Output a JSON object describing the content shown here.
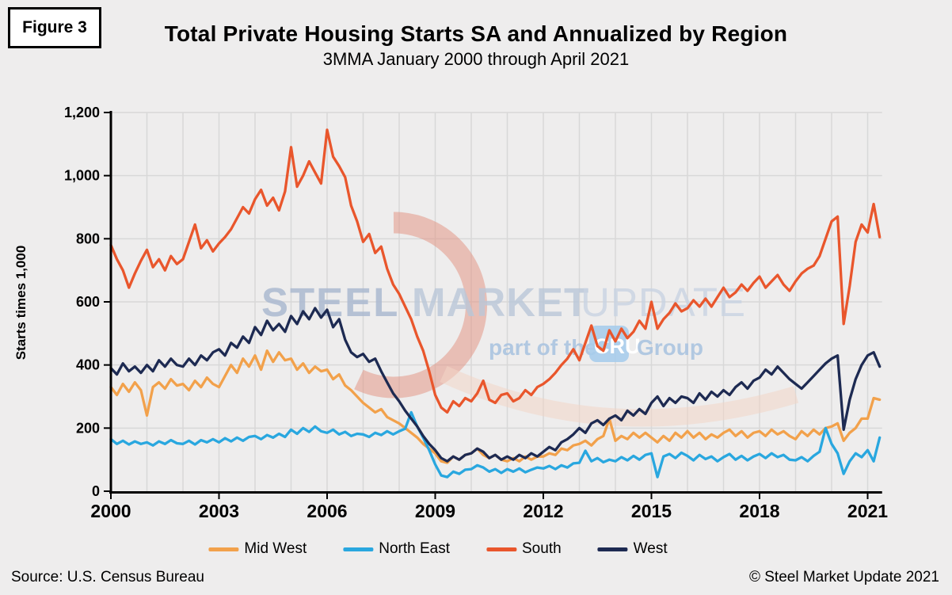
{
  "figure_label": "Figure 3",
  "header": {
    "title": "Total Private Housing Starts SA and Annualized by Region",
    "subtitle": "3MMA January 2000 through April 2021"
  },
  "watermark": {
    "steel": "STEEL",
    "market": "MARKET",
    "update": "UPDATE",
    "tagline_prefix": "part of the",
    "cru": "CRU",
    "tagline_suffix": "Group",
    "text_color": "#AFC3DC",
    "swoosh_color": "#E2907E"
  },
  "footer": {
    "source": "Source: U.S. Census Bureau",
    "copyright": "© Steel Market Update 2021"
  },
  "chart_data": {
    "type": "line",
    "title": "Total Private Housing Starts SA and Annualized by Region",
    "subtitle": "3MMA January 2000 through April 2021",
    "ylabel": "Starts times 1,000",
    "xlabel": "",
    "ylim": [
      0,
      1200
    ],
    "xlim": [
      2000,
      2021.4
    ],
    "grid": true,
    "legend_position": "bottom",
    "x_start_year": 2000,
    "x_step_months": 2,
    "x_end": "April 2021",
    "yticks": [
      {
        "v": 0,
        "label": "0"
      },
      {
        "v": 200,
        "label": "200"
      },
      {
        "v": 400,
        "label": "400"
      },
      {
        "v": 600,
        "label": "600"
      },
      {
        "v": 800,
        "label": "800"
      },
      {
        "v": 1000,
        "label": "1,000"
      },
      {
        "v": 1200,
        "label": "1,200"
      }
    ],
    "xticks": [
      {
        "year": 2000,
        "label": "2000"
      },
      {
        "year": 2003,
        "label": "2003"
      },
      {
        "year": 2006,
        "label": "2006"
      },
      {
        "year": 2009,
        "label": "2009"
      },
      {
        "year": 2012,
        "label": "2012"
      },
      {
        "year": 2015,
        "label": "2015"
      },
      {
        "year": 2018,
        "label": "2018"
      },
      {
        "year": 2021,
        "label": "2021"
      }
    ],
    "series": [
      {
        "name": "Mid West",
        "color": "#F2A14B",
        "values": [
          330,
          305,
          340,
          315,
          345,
          320,
          240,
          330,
          345,
          325,
          355,
          335,
          340,
          320,
          350,
          330,
          360,
          340,
          330,
          365,
          400,
          375,
          420,
          395,
          430,
          385,
          445,
          410,
          440,
          415,
          420,
          385,
          405,
          375,
          395,
          380,
          385,
          355,
          370,
          335,
          320,
          300,
          280,
          265,
          250,
          260,
          235,
          225,
          215,
          200,
          185,
          170,
          150,
          135,
          120,
          95,
          90,
          110,
          100,
          115,
          120,
          135,
          115,
          105,
          115,
          100,
          95,
          105,
          95,
          110,
          100,
          110,
          110,
          120,
          115,
          135,
          130,
          145,
          150,
          160,
          145,
          165,
          175,
          230,
          160,
          175,
          165,
          185,
          170,
          185,
          170,
          155,
          175,
          160,
          185,
          170,
          190,
          170,
          185,
          165,
          180,
          170,
          185,
          195,
          175,
          190,
          170,
          185,
          190,
          175,
          195,
          180,
          190,
          175,
          165,
          190,
          175,
          195,
          180,
          200,
          205,
          215,
          160,
          185,
          200,
          230,
          230,
          295,
          290
        ]
      },
      {
        "name": "North East",
        "color": "#29A7DF",
        "values": [
          165,
          150,
          160,
          148,
          158,
          150,
          155,
          145,
          158,
          150,
          162,
          152,
          150,
          160,
          148,
          162,
          155,
          165,
          155,
          168,
          158,
          170,
          160,
          172,
          175,
          165,
          178,
          170,
          182,
          172,
          195,
          182,
          200,
          188,
          205,
          190,
          185,
          195,
          180,
          188,
          175,
          182,
          180,
          172,
          185,
          178,
          190,
          180,
          190,
          198,
          250,
          205,
          170,
          130,
          85,
          50,
          45,
          62,
          55,
          68,
          70,
          82,
          75,
          62,
          70,
          58,
          70,
          62,
          72,
          60,
          68,
          75,
          72,
          80,
          70,
          82,
          75,
          88,
          90,
          128,
          95,
          105,
          92,
          100,
          95,
          108,
          98,
          112,
          100,
          115,
          120,
          45,
          110,
          118,
          105,
          122,
          112,
          98,
          115,
          102,
          110,
          95,
          108,
          118,
          100,
          112,
          98,
          110,
          118,
          105,
          120,
          108,
          115,
          100,
          98,
          108,
          95,
          112,
          125,
          200,
          150,
          120,
          55,
          95,
          120,
          108,
          130,
          95,
          170
        ]
      },
      {
        "name": "South",
        "color": "#E9562C",
        "values": [
          780,
          735,
          700,
          645,
          690,
          730,
          765,
          710,
          735,
          700,
          745,
          720,
          735,
          790,
          845,
          770,
          795,
          760,
          785,
          805,
          830,
          865,
          900,
          880,
          925,
          955,
          905,
          930,
          890,
          950,
          1090,
          965,
          1000,
          1045,
          1010,
          975,
          1145,
          1060,
          1030,
          995,
          905,
          855,
          790,
          815,
          755,
          775,
          705,
          655,
          625,
          585,
          545,
          490,
          445,
          380,
          305,
          265,
          250,
          285,
          270,
          295,
          285,
          310,
          350,
          290,
          280,
          305,
          310,
          285,
          295,
          320,
          305,
          330,
          340,
          355,
          375,
          400,
          420,
          450,
          415,
          470,
          525,
          460,
          445,
          510,
          475,
          515,
          485,
          505,
          540,
          515,
          600,
          515,
          545,
          565,
          595,
          570,
          580,
          605,
          585,
          610,
          585,
          615,
          645,
          615,
          630,
          655,
          635,
          660,
          680,
          645,
          665,
          685,
          655,
          635,
          665,
          690,
          705,
          715,
          745,
          800,
          855,
          870,
          530,
          650,
          790,
          845,
          820,
          910,
          805
        ]
      },
      {
        "name": "West",
        "color": "#1D2A52",
        "values": [
          390,
          370,
          405,
          380,
          395,
          375,
          400,
          380,
          415,
          395,
          420,
          400,
          395,
          420,
          400,
          430,
          415,
          440,
          450,
          430,
          470,
          455,
          490,
          470,
          520,
          495,
          540,
          510,
          530,
          505,
          555,
          530,
          570,
          545,
          580,
          550,
          575,
          520,
          545,
          480,
          440,
          425,
          435,
          410,
          420,
          380,
          345,
          310,
          285,
          255,
          230,
          205,
          175,
          150,
          130,
          105,
          95,
          110,
          100,
          115,
          120,
          135,
          125,
          105,
          115,
          100,
          110,
          100,
          115,
          105,
          120,
          110,
          125,
          140,
          130,
          155,
          165,
          180,
          200,
          185,
          215,
          225,
          210,
          230,
          240,
          225,
          255,
          240,
          260,
          245,
          280,
          300,
          270,
          295,
          280,
          300,
          295,
          280,
          310,
          290,
          315,
          300,
          320,
          305,
          330,
          345,
          325,
          350,
          360,
          385,
          370,
          395,
          375,
          355,
          340,
          325,
          345,
          365,
          385,
          405,
          420,
          430,
          195,
          290,
          355,
          400,
          430,
          440,
          395
        ]
      }
    ]
  }
}
